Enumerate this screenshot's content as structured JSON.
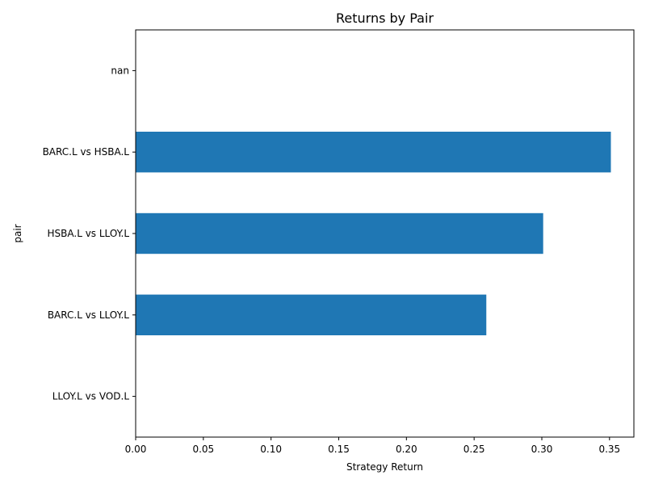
{
  "chart_data": {
    "type": "bar",
    "orientation": "horizontal",
    "title": "Returns by Pair",
    "xlabel": "Strategy Return",
    "ylabel": "pair",
    "categories": [
      "nan",
      "BARC.L vs HSBA.L",
      "HSBA.L vs LLOY.L",
      "BARC.L vs LLOY.L",
      "LLOY.L vs VOD.L"
    ],
    "values": [
      0.0,
      0.351,
      0.301,
      0.259,
      0.0
    ],
    "xlim": [
      0,
      0.368
    ],
    "xticks": [
      0.0,
      0.05,
      0.1,
      0.15,
      0.2,
      0.25,
      0.3,
      0.35
    ],
    "xtick_labels": [
      "0.00",
      "0.05",
      "0.10",
      "0.15",
      "0.20",
      "0.25",
      "0.30",
      "0.35"
    ],
    "bar_color": "#1f77b4",
    "grid": false,
    "legend": "none"
  }
}
